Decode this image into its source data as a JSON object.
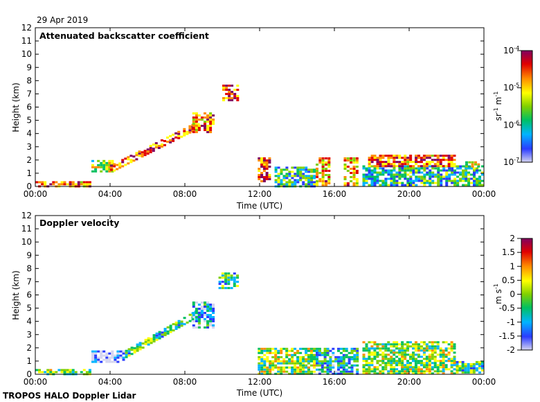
{
  "page": {
    "date": "29 Apr 2019",
    "footer": "TROPOS HALO Doppler Lidar"
  },
  "palette": {
    "stops": [
      "#d4d4f0",
      "#2a3cff",
      "#00b4ff",
      "#00c060",
      "#80d000",
      "#ffff00",
      "#ff8c00",
      "#e00000",
      "#800060"
    ],
    "colorbar_top": "#7a004a",
    "axis": "#000000"
  },
  "chart_data": [
    {
      "type": "heatmap",
      "title": "Attenuated backscatter coefficient",
      "xlabel": "Time (UTC)",
      "ylabel": "Height (km)",
      "xlim": [
        0,
        24
      ],
      "ylim": [
        0,
        12
      ],
      "xticks": [
        "00:00",
        "04:00",
        "08:00",
        "12:00",
        "16:00",
        "20:00",
        "00:00"
      ],
      "yticks": [
        "0",
        "1",
        "2",
        "3",
        "4",
        "5",
        "6",
        "7",
        "8",
        "9",
        "10",
        "11",
        "12"
      ],
      "colorbar": {
        "label_main": "sr",
        "label_sup1": "-1",
        "label_mid": " m",
        "label_sup2": "-1",
        "scale": "log",
        "range": [
          1e-07,
          0.0001
        ],
        "ticks": [
          {
            "base": "10",
            "exp": "-4",
            "value": 0.0001
          },
          {
            "base": "10",
            "exp": "-5",
            "value": 1e-05
          },
          {
            "base": "10",
            "exp": "-6",
            "value": 1e-06
          },
          {
            "base": "10",
            "exp": "-7",
            "value": 1e-07
          }
        ]
      },
      "features": [
        {
          "kind": "layer",
          "t": [
            0.0,
            3.0
          ],
          "h": [
            0.0,
            0.4
          ],
          "level": 0.8
        },
        {
          "kind": "layer",
          "t": [
            3.0,
            4.2
          ],
          "h": [
            1.0,
            2.0
          ],
          "level": 0.55
        },
        {
          "kind": "ascending_layer",
          "t": [
            4.0,
            8.8
          ],
          "h_start": 1.3,
          "h_end": 4.7,
          "level": 0.8
        },
        {
          "kind": "layer",
          "t": [
            8.4,
            9.6
          ],
          "h": [
            4.0,
            5.6
          ],
          "level": 0.75
        },
        {
          "kind": "layer",
          "t": [
            10.0,
            10.9
          ],
          "h": [
            6.5,
            7.7
          ],
          "level": 0.85
        },
        {
          "kind": "layer",
          "t": [
            11.9,
            12.6
          ],
          "h": [
            0.3,
            2.2
          ],
          "level": 0.85
        },
        {
          "kind": "layer",
          "t": [
            12.8,
            15.0
          ],
          "h": [
            0.0,
            1.5
          ],
          "level": 0.35
        },
        {
          "kind": "layer",
          "t": [
            15.0,
            15.8
          ],
          "h": [
            0.0,
            2.2
          ],
          "level": 0.7
        },
        {
          "kind": "layer",
          "t": [
            16.5,
            17.3
          ],
          "h": [
            0.0,
            2.2
          ],
          "level": 0.7
        },
        {
          "kind": "layer",
          "t": [
            17.5,
            24.0
          ],
          "h": [
            0.0,
            1.6
          ],
          "level": 0.35
        },
        {
          "kind": "layer",
          "t": [
            17.8,
            22.5
          ],
          "h": [
            1.5,
            2.4
          ],
          "level": 0.8
        },
        {
          "kind": "layer",
          "t": [
            23.0,
            23.8
          ],
          "h": [
            1.4,
            1.9
          ],
          "level": 0.55
        }
      ]
    },
    {
      "type": "heatmap",
      "title": "Doppler velocity",
      "xlabel": "Time (UTC)",
      "ylabel": "Height (km)",
      "xlim": [
        0,
        24
      ],
      "ylim": [
        0,
        12
      ],
      "xticks": [
        "00:00",
        "04:00",
        "08:00",
        "12:00",
        "16:00",
        "20:00",
        "00:00"
      ],
      "yticks": [
        "0",
        "1",
        "2",
        "3",
        "4",
        "5",
        "6",
        "7",
        "8",
        "9",
        "10",
        "11",
        "12"
      ],
      "colorbar": {
        "label": "m s",
        "label_sup": "-1",
        "scale": "linear",
        "range": [
          -2,
          2
        ],
        "ticks": [
          "2",
          "1.5",
          "1",
          "0.5",
          "0",
          "-0.5",
          "-1",
          "-1.5",
          "-2"
        ]
      },
      "features": [
        {
          "kind": "layer",
          "t": [
            0.0,
            3.0
          ],
          "h": [
            0.0,
            0.4
          ],
          "level": 0.45
        },
        {
          "kind": "layer",
          "t": [
            3.0,
            4.8
          ],
          "h": [
            0.9,
            1.8
          ],
          "level": 0.05
        },
        {
          "kind": "ascending_layer",
          "t": [
            4.8,
            8.8
          ],
          "h_start": 1.5,
          "h_end": 4.7,
          "level": 0.4
        },
        {
          "kind": "layer",
          "t": [
            8.4,
            9.6
          ],
          "h": [
            3.5,
            5.5
          ],
          "level": 0.2
        },
        {
          "kind": "layer",
          "t": [
            9.8,
            10.9
          ],
          "h": [
            6.5,
            7.7
          ],
          "level": 0.4
        },
        {
          "kind": "layer",
          "t": [
            11.9,
            15.0
          ],
          "h": [
            0.0,
            2.0
          ],
          "level": 0.5
        },
        {
          "kind": "layer",
          "t": [
            15.0,
            17.3
          ],
          "h": [
            0.0,
            2.0
          ],
          "level": 0.3
        },
        {
          "kind": "layer",
          "t": [
            17.5,
            22.5
          ],
          "h": [
            0.0,
            2.5
          ],
          "level": 0.5
        },
        {
          "kind": "layer",
          "t": [
            22.5,
            24.0
          ],
          "h": [
            0.0,
            1.0
          ],
          "level": 0.4
        }
      ]
    }
  ]
}
